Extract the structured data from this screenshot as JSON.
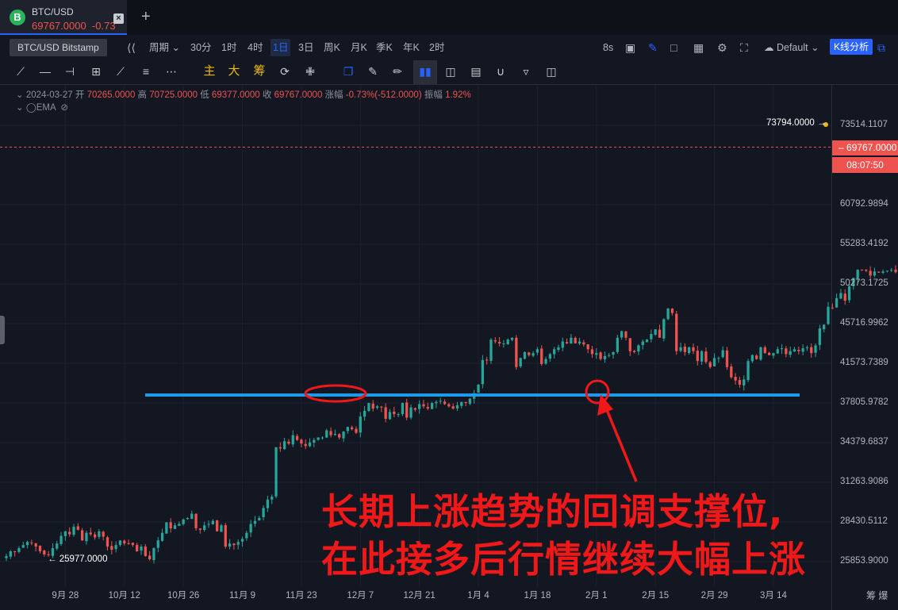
{
  "tab": {
    "symbol": "BTC/USD",
    "price": "69767.0000",
    "change": "-0.73",
    "logo_letter": "B",
    "close_label": "×",
    "add_label": "+"
  },
  "toolbar": {
    "exchange_tooltip": "BTC/USD Bitstamp",
    "period_label": "周期",
    "intervals": [
      "30分",
      "1时",
      "4时",
      "1日",
      "3日",
      "周K",
      "月K",
      "季K",
      "年K",
      "2时"
    ],
    "active_interval": "1日",
    "refresh": "8s",
    "theme": "Default",
    "kline_analysis": "K线分析"
  },
  "drawing_tools": {
    "main_label": "主",
    "big_label": "大",
    "chip_label": "筹"
  },
  "ohlc": {
    "date": "2024-03-27",
    "open_label": "开",
    "open": "70265.0000",
    "high_label": "高",
    "high": "70725.0000",
    "low_label": "低",
    "low": "69377.0000",
    "close_label": "收",
    "close": "69767.0000",
    "change_label": "涨幅",
    "change": "-0.73%(-512.0000)",
    "amplitude_label": "振幅",
    "amplitude": "1.92%",
    "indicator": "EMA"
  },
  "price_tags": {
    "current": "69767.0000",
    "timer": "08:07:50",
    "high_marker": "73794.0000",
    "low_marker": "25977.0000"
  },
  "annotation": {
    "line1": "长期上涨趋势的回调支撑位,",
    "line2": "在此接多后行情继续大幅上涨"
  },
  "bottom_right": "筹 爆",
  "colors": {
    "up": "#26a69a",
    "down": "#ef5350",
    "support_line": "#1e9be8",
    "annotation": "#f01818",
    "accent": "#2962ff"
  },
  "chart_data": {
    "type": "candlestick",
    "title": "",
    "symbol": "BTC/USD",
    "interval": "1D",
    "y_scale": "log",
    "ylim": [
      24800,
      76500
    ],
    "y_ticks": [
      "73514.1107",
      "60792.9894",
      "55283.4192",
      "50273.1725",
      "45716.9962",
      "41573.7389",
      "37805.9782",
      "34379.6837",
      "31263.9086",
      "28430.5112",
      "25853.9000"
    ],
    "x_ticks": [
      "9月 28",
      "10月 12",
      "10月 26",
      "11月 9",
      "11月 23",
      "12月 7",
      "12月 21",
      "1月 4",
      "1月 18",
      "2月 1",
      "2月 15",
      "2月 29",
      "3月 14"
    ],
    "x_start": "2023-09-14",
    "x_end": "2024-03-27",
    "closes": [
      26200,
      26500,
      26450,
      26700,
      26900,
      27100,
      27050,
      26800,
      26500,
      26300,
      26250,
      26700,
      27000,
      27500,
      27800,
      27600,
      28100,
      27900,
      27200,
      27700,
      27600,
      27400,
      27800,
      27450,
      26800,
      26600,
      26900,
      27200,
      27000,
      27000,
      26900,
      26500,
      26800,
      26200,
      26000,
      26700,
      27200,
      27700,
      28400,
      28000,
      28200,
      28300,
      28600,
      28700,
      29000,
      28000,
      27900,
      28200,
      28300,
      28500,
      27800,
      28200,
      26800,
      27000,
      26900,
      27100,
      27300,
      27700,
      28300,
      28500,
      28700,
      29400,
      30000,
      30200,
      34000,
      33900,
      34500,
      34300,
      35000,
      34600,
      34300,
      34100,
      34400,
      34600,
      34800,
      34800,
      35400,
      35000,
      35100,
      34800,
      35300,
      35700,
      35500,
      35200,
      36600,
      37100,
      37800,
      37300,
      37500,
      37400,
      36400,
      37000,
      36800,
      36800,
      37800,
      36500,
      37400,
      37200,
      37700,
      37500,
      37300,
      37800,
      37900,
      38000,
      37700,
      37500,
      37300,
      37600,
      37900,
      37800,
      38200,
      38700,
      39500,
      41900,
      41900,
      44000,
      43800,
      43600,
      43600,
      44000,
      44200,
      41200,
      42100,
      42700,
      42400,
      42600,
      43000,
      41500,
      42000,
      42500,
      43000,
      43200,
      43800,
      43600,
      44200,
      43600,
      43800,
      43500,
      43000,
      42500,
      42600,
      42000,
      42300,
      42400,
      42700,
      44200,
      44900,
      44200,
      42800,
      42700,
      43400,
      43800,
      44000,
      44600,
      45100,
      44200,
      46200,
      47400,
      46900,
      42800,
      43200,
      42700,
      43200,
      42800,
      41800,
      42800,
      41700,
      41200,
      42100,
      42100,
      42900,
      41200,
      40200,
      39900,
      39500,
      40000,
      41800,
      42400,
      42000,
      43200,
      42600,
      42400,
      42600,
      43000,
      43100,
      42500,
      42800,
      43000,
      42800,
      43100,
      43200,
      42600,
      43400,
      45200,
      45600,
      47600,
      47500,
      48600,
      49200,
      48300,
      50000,
      51000,
      52000,
      52000,
      51900,
      51300,
      51800,
      51700,
      51800,
      51900,
      52000,
      51700,
      51700,
      51200,
      51700,
      51300,
      51700,
      51500,
      53900,
      57300,
      61900,
      63000,
      62000,
      61400,
      66000,
      67600,
      66000,
      68300,
      68000,
      65000,
      66000,
      67000,
      68500,
      68300,
      68600,
      69200,
      71300,
      71500,
      73100,
      71400,
      68000,
      67600,
      71000,
      68000,
      67500,
      69800,
      70300,
      69767
    ]
  }
}
